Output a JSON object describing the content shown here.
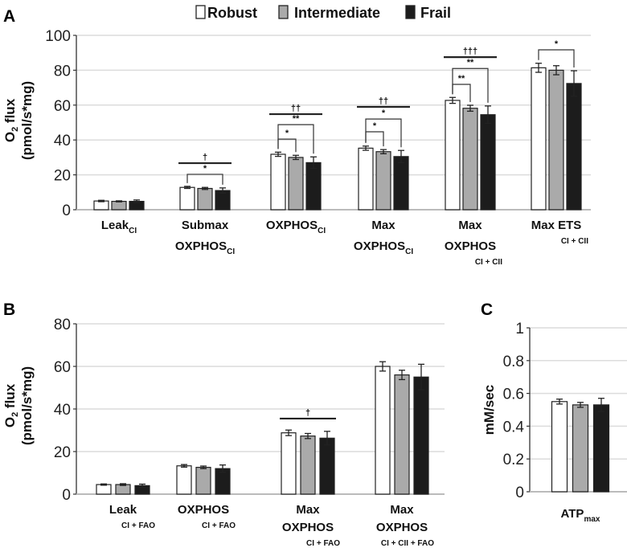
{
  "legend": {
    "items": [
      {
        "label": "Robust",
        "color": "#ffffff"
      },
      {
        "label": "Intermediate",
        "color": "#aaaaaa"
      },
      {
        "label": "Frail",
        "color": "#1c1c1c"
      }
    ]
  },
  "chart_data": [
    {
      "panel": "A",
      "type": "bar",
      "ylabel_line1": "O",
      "ylabel_sub": "2",
      "ylabel_rest": " flux",
      "ylabel_line2": "(pmol/s*mg)",
      "ylim": [
        0,
        100
      ],
      "yticks": [
        0,
        20,
        40,
        60,
        80,
        100
      ],
      "categories": [
        {
          "lines": [
            {
              "t": "Leak",
              "s": "CI"
            }
          ]
        },
        {
          "lines": [
            {
              "t": "Submax"
            },
            {
              "t": "OXPHOS",
              "s": "CI"
            }
          ]
        },
        {
          "lines": [
            {
              "t": "OXPHOS",
              "s": "CI"
            }
          ]
        },
        {
          "lines": [
            {
              "t": "Max"
            },
            {
              "t": "OXPHOS",
              "s": "CI"
            }
          ]
        },
        {
          "lines": [
            {
              "t": "Max"
            },
            {
              "t": "OXPHOS"
            },
            {
              "t": "",
              "s": "CI + CII"
            }
          ]
        },
        {
          "lines": [
            {
              "t": "Max ETS"
            },
            {
              "t": "",
              "s": "CI + CII"
            }
          ]
        }
      ],
      "series": [
        {
          "name": "Robust",
          "values": [
            5.0,
            12.8,
            31.8,
            35.3,
            62.7,
            81.4
          ],
          "errors": [
            0.4,
            0.6,
            1.2,
            1.2,
            1.7,
            2.6
          ]
        },
        {
          "name": "Intermediate",
          "values": [
            4.8,
            12.2,
            30.0,
            33.3,
            58.2,
            80.0
          ],
          "errors": [
            0.3,
            0.6,
            1.2,
            1.2,
            1.7,
            2.6
          ]
        },
        {
          "name": "Frail",
          "values": [
            4.8,
            11.0,
            27.0,
            30.5,
            54.5,
            72.4
          ],
          "errors": [
            0.8,
            1.5,
            3.3,
            3.5,
            5.0,
            7.3
          ]
        }
      ],
      "annotations": [
        {
          "cat": 1,
          "kind": "bracket",
          "from": 0,
          "to": 2,
          "y": 20.3,
          "label": "*"
        },
        {
          "cat": 1,
          "kind": "line",
          "from": 0,
          "to": 2,
          "y": 26.7,
          "label": "†"
        },
        {
          "cat": 2,
          "kind": "bracket",
          "from": 0,
          "to": 1,
          "y": 40.5,
          "label": "*"
        },
        {
          "cat": 2,
          "kind": "bracket",
          "from": 0,
          "to": 2,
          "y": 48.8,
          "label": "**"
        },
        {
          "cat": 2,
          "kind": "line",
          "from": 0,
          "to": 2,
          "y": 54.8,
          "label": "††"
        },
        {
          "cat": 3,
          "kind": "bracket",
          "from": 0,
          "to": 1,
          "y": 44.7,
          "label": "*"
        },
        {
          "cat": 3,
          "kind": "bracket",
          "from": 0,
          "to": 2,
          "y": 52.0,
          "label": "*"
        },
        {
          "cat": 3,
          "kind": "line",
          "from": 0,
          "to": 2,
          "y": 59.0,
          "label": "††"
        },
        {
          "cat": 4,
          "kind": "bracket",
          "from": 0,
          "to": 1,
          "y": 71.9,
          "label": "**"
        },
        {
          "cat": 4,
          "kind": "bracket",
          "from": 0,
          "to": 2,
          "y": 81.0,
          "label": "**"
        },
        {
          "cat": 4,
          "kind": "line",
          "from": 0,
          "to": 2,
          "y": 87.5,
          "label": "†††"
        },
        {
          "cat": 5,
          "kind": "bracket",
          "from": 0,
          "to": 2,
          "y": 91.7,
          "label": "*"
        }
      ],
      "grid": true
    },
    {
      "panel": "B",
      "type": "bar",
      "ylabel_line1": "O",
      "ylabel_sub": "2",
      "ylabel_rest": " flux",
      "ylabel_line2": "(pmol/s*mg)",
      "ylim": [
        0,
        80
      ],
      "yticks": [
        0,
        20,
        40,
        60,
        80
      ],
      "categories": [
        {
          "lines": [
            {
              "t": "Leak"
            },
            {
              "t": "",
              "s": "CI + FAO"
            }
          ]
        },
        {
          "lines": [
            {
              "t": "OXPHOS"
            },
            {
              "t": "",
              "s": "CI + FAO"
            }
          ]
        },
        {
          "lines": [
            {
              "t": "Max"
            },
            {
              "t": "OXPHOS"
            },
            {
              "t": "",
              "s": "CI + FAO"
            }
          ]
        },
        {
          "lines": [
            {
              "t": "Max"
            },
            {
              "t": "OXPHOS"
            },
            {
              "t": "",
              "s": "CI + CII + FAO"
            }
          ]
        }
      ],
      "series": [
        {
          "name": "Robust",
          "values": [
            4.5,
            13.3,
            28.8,
            60.0
          ],
          "errors": [
            0.3,
            0.6,
            1.3,
            2.2
          ]
        },
        {
          "name": "Intermediate",
          "values": [
            4.5,
            12.6,
            27.3,
            56.0
          ],
          "errors": [
            0.4,
            0.6,
            1.2,
            2.2
          ]
        },
        {
          "name": "Frail",
          "values": [
            4.0,
            12.0,
            26.3,
            55.0
          ],
          "errors": [
            0.7,
            1.7,
            3.2,
            6.0
          ]
        }
      ],
      "annotations": [
        {
          "cat": 2,
          "kind": "line",
          "from": 0,
          "to": 2,
          "y": 35.5,
          "label": "†"
        }
      ],
      "grid": true
    },
    {
      "panel": "C",
      "type": "bar",
      "ylabel_line1": "mM/sec",
      "ylabel_sub": "",
      "ylabel_rest": "",
      "ylabel_line2": "",
      "ylim": [
        0,
        1
      ],
      "yticks": [
        0,
        0.2,
        0.4,
        0.6,
        0.8,
        1
      ],
      "ytick_labels": [
        "0",
        "0.2",
        "0.4",
        "0.6",
        "0.8",
        "1"
      ],
      "categories": [
        {
          "lines": [
            {
              "t": "ATP",
              "s": "max"
            }
          ]
        }
      ],
      "series": [
        {
          "name": "Robust",
          "values": [
            0.55
          ],
          "errors": [
            0.015
          ]
        },
        {
          "name": "Intermediate",
          "values": [
            0.53
          ],
          "errors": [
            0.015
          ]
        },
        {
          "name": "Frail",
          "values": [
            0.53
          ],
          "errors": [
            0.04
          ]
        }
      ],
      "annotations": [],
      "grid": true
    }
  ]
}
